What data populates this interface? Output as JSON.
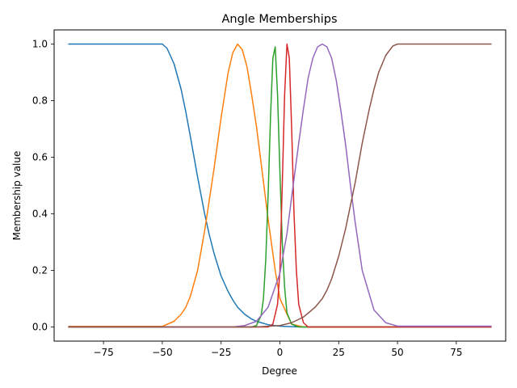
{
  "chart_data": {
    "type": "line",
    "title": "Angle Memberships",
    "xlabel": "Degree",
    "ylabel": "Membership value",
    "xlim": [
      -96,
      96
    ],
    "ylim": [
      -0.05,
      1.05
    ],
    "xticks": [
      -75,
      -50,
      -25,
      0,
      25,
      50,
      75
    ],
    "xtick_labels": [
      "−75",
      "−50",
      "−25",
      "0",
      "25",
      "50",
      "75"
    ],
    "yticks": [
      0.0,
      0.2,
      0.4,
      0.6,
      0.8,
      1.0
    ],
    "ytick_labels": [
      "0.0",
      "0.2",
      "0.4",
      "0.6",
      "0.8",
      "1.0"
    ],
    "grid": false,
    "series": [
      {
        "color": "#1f77b4",
        "x": [
          -90,
          -50,
          -48,
          -45,
          -42,
          -40,
          -38,
          -35,
          -32,
          -30,
          -28,
          -25,
          -22,
          -20,
          -18,
          -15,
          -12,
          -10,
          -5,
          0,
          5,
          10,
          20,
          50,
          90
        ],
        "y": [
          1.0,
          1.0,
          0.985,
          0.93,
          0.84,
          0.76,
          0.67,
          0.53,
          0.4,
          0.325,
          0.26,
          0.18,
          0.125,
          0.095,
          0.07,
          0.045,
          0.028,
          0.02,
          0.008,
          0.003,
          0.001,
          0.0,
          0.0,
          0.0,
          0.0
        ]
      },
      {
        "color": "#ff7f0e",
        "x": [
          -90,
          -50,
          -45,
          -42,
          -40,
          -38,
          -35,
          -32,
          -30,
          -28,
          -25,
          -22,
          -20,
          -18,
          -16,
          -14,
          -12,
          -10,
          -8,
          -5,
          -2,
          0,
          5,
          10,
          20,
          50,
          90
        ],
        "y": [
          0.002,
          0.002,
          0.02,
          0.045,
          0.07,
          0.11,
          0.2,
          0.34,
          0.45,
          0.56,
          0.74,
          0.9,
          0.97,
          1.0,
          0.98,
          0.92,
          0.82,
          0.71,
          0.58,
          0.38,
          0.2,
          0.1,
          0.01,
          0.0,
          0.0,
          0.0,
          0.0
        ]
      },
      {
        "color": "#2ca02c",
        "x": [
          -90,
          -12,
          -10,
          -8,
          -7,
          -6,
          -5,
          -4,
          -3,
          -2,
          -1,
          0,
          1,
          2,
          3,
          5,
          8,
          12,
          90
        ],
        "y": [
          0.0,
          0.0,
          0.005,
          0.04,
          0.1,
          0.24,
          0.47,
          0.74,
          0.95,
          0.99,
          0.82,
          0.55,
          0.3,
          0.14,
          0.05,
          0.01,
          0.0,
          0.0,
          0.0
        ]
      },
      {
        "color": "#d62728",
        "x": [
          -90,
          -5,
          -3,
          -1,
          0,
          1,
          2,
          3,
          4,
          5,
          6,
          7,
          8,
          10,
          12,
          90
        ],
        "y": [
          0.0,
          0.0,
          0.01,
          0.08,
          0.2,
          0.5,
          0.82,
          1.0,
          0.95,
          0.7,
          0.4,
          0.2,
          0.08,
          0.015,
          0.0,
          0.0
        ]
      },
      {
        "color": "#9467bd",
        "x": [
          -90,
          -50,
          -20,
          -15,
          -10,
          -5,
          0,
          3,
          5,
          8,
          10,
          12,
          14,
          16,
          18,
          20,
          22,
          24,
          26,
          28,
          30,
          32,
          35,
          40,
          45,
          50,
          90
        ],
        "y": [
          0.0,
          0.0,
          0.0,
          0.005,
          0.02,
          0.07,
          0.19,
          0.33,
          0.46,
          0.65,
          0.77,
          0.88,
          0.95,
          0.99,
          1.0,
          0.99,
          0.95,
          0.87,
          0.76,
          0.64,
          0.5,
          0.37,
          0.2,
          0.06,
          0.015,
          0.003,
          0.003
        ]
      },
      {
        "color": "#8c564b",
        "x": [
          -90,
          -10,
          0,
          5,
          10,
          15,
          18,
          20,
          22,
          25,
          28,
          30,
          32,
          35,
          38,
          40,
          42,
          45,
          48,
          50,
          90
        ],
        "y": [
          0.0,
          0.0,
          0.005,
          0.015,
          0.035,
          0.07,
          0.1,
          0.13,
          0.17,
          0.25,
          0.35,
          0.43,
          0.51,
          0.65,
          0.77,
          0.84,
          0.9,
          0.96,
          0.993,
          1.0,
          1.0
        ]
      }
    ]
  }
}
